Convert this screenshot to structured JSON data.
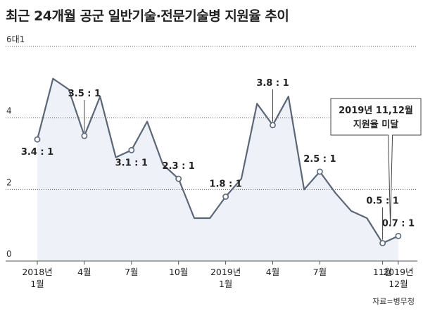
{
  "chart_data": {
    "type": "area",
    "title": "최근 24개월 공군 일반기술·전문기술병 지원율 추이",
    "ylim": [
      0,
      6
    ],
    "ytick_values": [
      0,
      2,
      4,
      6
    ],
    "ytick_labels": [
      "0",
      "2",
      "4",
      "6대1"
    ],
    "x": [
      "2018-01",
      "2018-02",
      "2018-03",
      "2018-04",
      "2018-05",
      "2018-06",
      "2018-07",
      "2018-08",
      "2018-09",
      "2018-10",
      "2018-11",
      "2018-12",
      "2019-01",
      "2019-02",
      "2019-03",
      "2019-04",
      "2019-05",
      "2019-06",
      "2019-07",
      "2019-08",
      "2019-09",
      "2019-10",
      "2019-11",
      "2019-12"
    ],
    "values": [
      3.4,
      5.1,
      4.8,
      3.5,
      4.6,
      2.9,
      3.1,
      3.9,
      2.7,
      2.3,
      1.2,
      1.2,
      1.8,
      2.3,
      4.4,
      3.8,
      4.6,
      2.0,
      2.5,
      1.9,
      1.4,
      1.2,
      0.5,
      0.7
    ],
    "xtick_labels": [
      {
        "i": 0,
        "lines": [
          "2018년",
          "1월"
        ]
      },
      {
        "i": 3,
        "lines": [
          "4월"
        ]
      },
      {
        "i": 6,
        "lines": [
          "7월"
        ]
      },
      {
        "i": 9,
        "lines": [
          "10월"
        ]
      },
      {
        "i": 12,
        "lines": [
          "2019년",
          "1월"
        ]
      },
      {
        "i": 15,
        "lines": [
          "4월"
        ]
      },
      {
        "i": 18,
        "lines": [
          "7월"
        ]
      },
      {
        "i": 22,
        "lines": [
          "11월"
        ]
      },
      {
        "i": 23,
        "lines": [
          "2019년",
          "12월"
        ]
      }
    ],
    "data_labels": [
      {
        "i": 0,
        "text": "3.4 : 1",
        "pos": "below"
      },
      {
        "i": 3,
        "text": "3.5 : 1",
        "pos": "callout"
      },
      {
        "i": 6,
        "text": "3.1 : 1",
        "pos": "below"
      },
      {
        "i": 9,
        "text": "2.3 : 1",
        "pos": "above"
      },
      {
        "i": 12,
        "text": "1.8 : 1",
        "pos": "above"
      },
      {
        "i": 15,
        "text": "3.8 : 1",
        "pos": "callout"
      },
      {
        "i": 18,
        "text": "2.5 : 1",
        "pos": "above"
      },
      {
        "i": 22,
        "text": "0.5 : 1",
        "pos": "callout"
      },
      {
        "i": 23,
        "text": "0.7 : 1",
        "pos": "above"
      }
    ],
    "annotation": {
      "lines": [
        "2019년 11,12월",
        "지원율 미달"
      ]
    },
    "grid": true,
    "colors": {
      "line": "#5b6677",
      "fill": "#eef1f7",
      "grid": "#555555"
    },
    "source": "자료=병무청"
  }
}
